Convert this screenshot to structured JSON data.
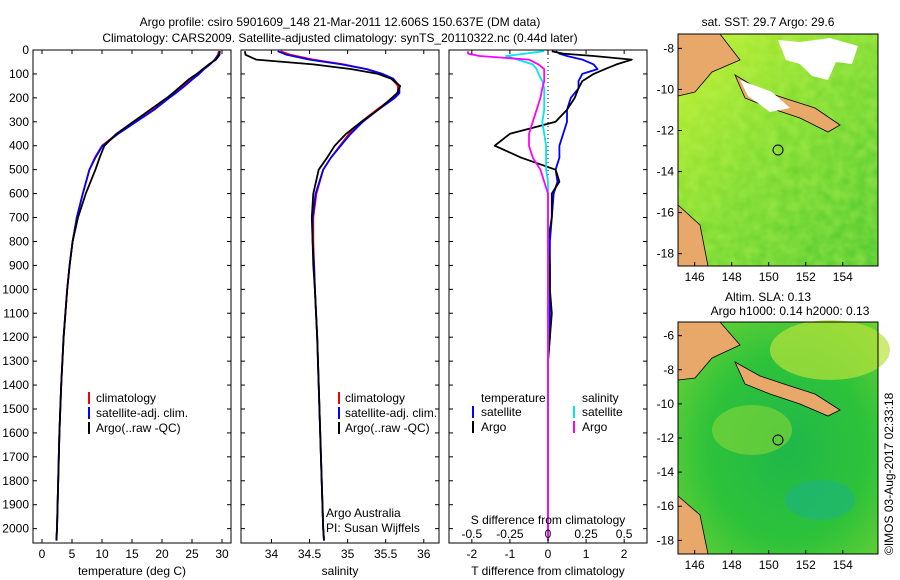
{
  "header": {
    "line1": "Argo profile: csiro 5901609_148 21-Mar-2011 12.606S 150.637E (DM data)",
    "line2": "Climatology: CARS2009. Satellite-adjusted climatology: synTS_20110322.nc (0.44d later)"
  },
  "depth_ticks": [
    "0",
    "100",
    "200",
    "300",
    "400",
    "500",
    "600",
    "700",
    "800",
    "900",
    "1000",
    "1100",
    "1200",
    "1300",
    "1400",
    "1500",
    "1600",
    "1700",
    "1800",
    "1900",
    "2000"
  ],
  "colors": {
    "climatology": "#ff0000",
    "satellite": "#0000ff",
    "argo": "#000000",
    "cyan": "#00e5ee",
    "magenta": "#ff00ff"
  },
  "chart_data": [
    {
      "type": "line",
      "name": "temperature",
      "xlabel": "temperature (deg C)",
      "xlim": [
        -1.5,
        31.5
      ],
      "ylim": [
        2060,
        0
      ],
      "xticks": [
        "0",
        "5",
        "10",
        "15",
        "20",
        "25",
        "30"
      ],
      "depth": [
        5,
        20,
        40,
        60,
        80,
        100,
        120,
        150,
        180,
        200,
        250,
        300,
        350,
        400,
        450,
        500,
        600,
        700,
        800,
        900,
        1000,
        1200,
        1400,
        1600,
        1800,
        2000,
        2050
      ],
      "series": [
        {
          "name": "climatology",
          "color": "#ff0000",
          "x": [
            29.5,
            29.3,
            28.8,
            28.0,
            27.0,
            26.0,
            25.0,
            23.5,
            22.0,
            21.0,
            18.5,
            15.5,
            12.5,
            10.0,
            8.8,
            7.9,
            6.8,
            5.8,
            5.1,
            4.6,
            4.2,
            3.6,
            3.2,
            2.9,
            2.7,
            2.5,
            2.4
          ]
        },
        {
          "name": "satellite-adj. clim.",
          "color": "#0000ff",
          "x": [
            29.7,
            29.4,
            28.8,
            28.0,
            27.0,
            26.2,
            25.2,
            23.8,
            22.3,
            21.2,
            18.7,
            15.7,
            12.7,
            10.1,
            8.9,
            7.9,
            6.8,
            5.8,
            5.1,
            4.6,
            4.2,
            3.6,
            3.2,
            2.9,
            2.7,
            2.5,
            2.4
          ]
        },
        {
          "name": "Argo(..raw -QC)",
          "color": "#000000",
          "x": [
            29.6,
            29.6,
            29.0,
            27.8,
            26.8,
            25.8,
            24.6,
            23.2,
            21.8,
            20.8,
            18.0,
            15.2,
            12.4,
            10.4,
            9.6,
            8.9,
            7.3,
            6.0,
            5.1,
            4.6,
            4.2,
            3.6,
            3.2,
            2.9,
            2.7,
            2.5,
            2.4
          ]
        }
      ],
      "legend": [
        "climatology",
        "satellite-adj. clim.",
        "Argo(..raw -QC)"
      ]
    },
    {
      "type": "line",
      "name": "salinity",
      "xlabel": "salinity",
      "xlim": [
        33.6,
        36.2
      ],
      "ylim": [
        2060,
        0
      ],
      "xticks": [
        "34",
        "34.5",
        "35",
        "35.5",
        "36"
      ],
      "depth": [
        5,
        20,
        40,
        60,
        80,
        100,
        120,
        150,
        180,
        200,
        250,
        300,
        350,
        400,
        450,
        500,
        600,
        700,
        800,
        900,
        1000,
        1200,
        1400,
        1600,
        1800,
        2000,
        2050
      ],
      "series": [
        {
          "name": "climatology",
          "color": "#ff0000",
          "x": [
            34.12,
            34.25,
            34.55,
            34.95,
            35.25,
            35.45,
            35.58,
            35.66,
            35.66,
            35.6,
            35.38,
            35.18,
            35.02,
            34.9,
            34.78,
            34.68,
            34.59,
            34.55,
            34.55,
            34.56,
            34.57,
            34.6,
            34.62,
            34.64,
            34.66,
            34.68,
            34.69
          ]
        },
        {
          "name": "satellite-adj. clim.",
          "color": "#0000ff",
          "x": [
            34.08,
            34.2,
            34.5,
            34.92,
            35.25,
            35.46,
            35.6,
            35.68,
            35.68,
            35.62,
            35.4,
            35.2,
            35.04,
            34.91,
            34.78,
            34.68,
            34.58,
            34.54,
            34.54,
            34.56,
            34.57,
            34.6,
            34.62,
            34.64,
            34.66,
            34.68,
            34.69
          ]
        },
        {
          "name": "Argo(..raw -QC)",
          "color": "#000000",
          "x": [
            33.65,
            33.66,
            33.8,
            34.55,
            35.05,
            35.4,
            35.57,
            35.69,
            35.65,
            35.58,
            35.4,
            35.18,
            34.98,
            34.83,
            34.73,
            34.62,
            34.55,
            34.53,
            34.54,
            34.55,
            34.57,
            34.6,
            34.62,
            34.64,
            34.66,
            34.68,
            34.69
          ]
        }
      ],
      "legend": [
        "climatology",
        "satellite-adj. clim.",
        "Argo(..raw -QC)"
      ],
      "note1": "Argo Australia",
      "note2": "PI: Susan Wijffels"
    },
    {
      "type": "line",
      "name": "differences",
      "xlabel": "T difference from climatology",
      "x2label": "S difference from climatology",
      "xlim": [
        -2.6,
        2.6
      ],
      "ylim": [
        2060,
        0
      ],
      "xticks": [
        "-2",
        "-1",
        "0",
        "1",
        "2"
      ],
      "x2ticks": [
        "-0.5",
        "-0.25",
        "0",
        "0.25",
        "0.5"
      ],
      "depth": [
        5,
        15,
        25,
        40,
        60,
        80,
        100,
        130,
        160,
        200,
        250,
        300,
        350,
        400,
        450,
        500,
        550,
        600,
        700,
        800,
        900,
        1000,
        1100,
        1200,
        1300,
        1500,
        1800,
        2050
      ],
      "series": [
        {
          "name": "temperature satellite",
          "color": "#0000ff",
          "x": [
            0.2,
            0.3,
            0.5,
            0.9,
            1.2,
            1.3,
            0.9,
            0.8,
            0.8,
            0.6,
            0.5,
            0.5,
            0.4,
            0.3,
            0.3,
            0.2,
            0.25,
            0.15,
            0.1,
            0.05,
            0.05,
            0.05,
            0.05,
            0.05,
            0.0,
            0.0,
            0.0,
            0.0
          ]
        },
        {
          "name": "temperature Argo",
          "color": "#000000",
          "x": [
            0.1,
            0.4,
            1.2,
            2.2,
            1.8,
            1.5,
            1.2,
            0.9,
            0.8,
            0.7,
            0.5,
            0.2,
            -1.0,
            -1.4,
            -0.7,
            0.2,
            0.3,
            0.1,
            0.1,
            0.0,
            0.05,
            0.05,
            0.1,
            0.05,
            0.0,
            0.0,
            0.0,
            0.0
          ]
        },
        {
          "name": "salinity satellite",
          "color": "#00e5ee",
          "x": [
            -0.1,
            -0.6,
            -1.1,
            -0.8,
            -0.4,
            -0.3,
            -0.25,
            -0.15,
            -0.1,
            -0.1,
            -0.1,
            -0.15,
            -0.1,
            -0.05,
            -0.05,
            -0.05,
            0.0,
            0.0,
            0.0,
            0.0,
            0.0,
            0.0,
            0.0,
            0.0,
            0.0,
            0.0,
            0.0,
            0.0
          ]
        },
        {
          "name": "salinity Argo",
          "color": "#ff00ff",
          "x": [
            -2.1,
            -2.1,
            -1.8,
            -0.5,
            -0.25,
            -0.1,
            -0.1,
            -0.1,
            -0.15,
            -0.2,
            -0.3,
            -0.4,
            -0.5,
            -0.5,
            -0.4,
            -0.2,
            -0.1,
            0.0,
            0.0,
            0.0,
            0.0,
            0.0,
            0.0,
            0.0,
            0.0,
            0.0,
            0.0,
            0.0
          ]
        }
      ],
      "legend_temp_title": "temperature",
      "legend_sal_title": "salinity",
      "legend_temp": [
        "satellite",
        "Argo"
      ],
      "legend_sal": [
        "satellite",
        "Argo"
      ]
    }
  ],
  "maps": {
    "sst_title": "sat. SST: 29.7 Argo: 29.6",
    "sla_title1": "Altim. SLA: 0.13",
    "sla_title2": "Argo h1000: 0.14 h2000: 0.13",
    "sst_lat_ticks": [
      "-8",
      "-10",
      "-12",
      "-14",
      "-16",
      "-18"
    ],
    "sla_lat_ticks": [
      "-6",
      "-8",
      "-10",
      "-12",
      "-14",
      "-16",
      "-18"
    ],
    "lon_ticks": [
      "146",
      "148",
      "150",
      "152",
      "154"
    ],
    "credit": "©IMOS 03-Aug-2017 02:33:18"
  }
}
